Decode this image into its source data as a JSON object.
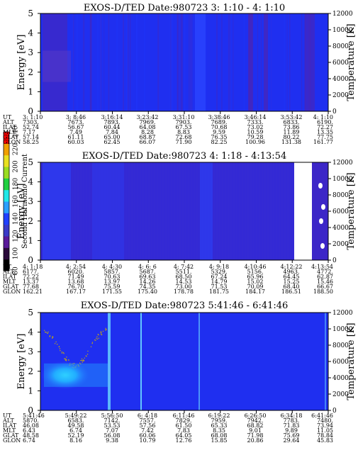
{
  "colors": {
    "bg_blue": "#1f2ff0",
    "band_blue": "#2a45ff",
    "purple": "#4b24b4",
    "cyan_core": "#2ff0ff",
    "speckle": "#d0b000"
  },
  "chart_data": [
    {
      "type": "heatmap",
      "title": "EXOS-D/TED   Date:980723  3: 1:10 - 4: 1:10",
      "ylabel": "Energy [eV]",
      "ylabel_right": "Temperature [K]",
      "ylim": [
        0,
        5
      ],
      "yticks": [
        "0",
        "1",
        "2",
        "3",
        "4",
        "5"
      ],
      "ylim_right": [
        0,
        12000
      ],
      "yticks_right": [
        "0",
        "2000",
        "4000",
        "6000",
        "8000",
        "10000",
        "12000"
      ],
      "x_times": [
        "3: 1:10",
        "3: 8:46",
        "3:16:14",
        "3:23:42",
        "3:31:10",
        "3:38:46",
        "3:46:14",
        "3:53:42",
        "4: 1:10"
      ],
      "rows": [
        {
          "label": "UT",
          "values": [
            "3: 1:10",
            "3: 8:46",
            "3:16:14",
            "3:23:42",
            "3:31:10",
            "3:38:46",
            "3:46:14",
            "3:53:42",
            "4: 1:10"
          ]
        },
        {
          "label": "ALT",
          "values": [
            "7303.",
            "7673.",
            "7893.",
            "7969.",
            "7903.",
            "7689.",
            "7333.",
            "6833.",
            "6190."
          ]
        },
        {
          "label": "ILAT",
          "values": [
            "52.74",
            "56.67",
            "60.44",
            "64.08",
            "67.53",
            "70.68",
            "73.02",
            "73.86",
            "72.27"
          ]
        },
        {
          "label": "MLT",
          "values": [
            "7.17",
            "7.49",
            "7.84",
            "8.28",
            "8.83",
            "9.59",
            "10.59",
            "11.89",
            "13.35"
          ]
        },
        {
          "label": "GLAT",
          "values": [
            "57.14",
            "61.11",
            "65.00",
            "68.87",
            "72.68",
            "76.35",
            "79.28",
            "80.22",
            "77.75"
          ]
        },
        {
          "label": "GLON",
          "values": [
            "58.25",
            "60.03",
            "62.45",
            "66.07",
            "71.90",
            "82.25",
            "100.96",
            "131.38",
            "161.77"
          ]
        }
      ]
    },
    {
      "type": "heatmap",
      "title": "EXOS-D/TED   Date:980723  4: 1:18 - 4:13:54",
      "ylabel": "Energy [eV]",
      "ylabel_right": "Temperature [K]",
      "ylim": [
        0,
        5
      ],
      "yticks": [
        "0",
        "1",
        "2",
        "3",
        "4",
        "5"
      ],
      "ylim_right": [
        0,
        12000
      ],
      "yticks_right": [
        "0",
        "2000",
        "4000",
        "6000",
        "8000",
        "10000",
        "12000"
      ],
      "x_times": [
        "4: 1:18",
        "4: 2:54",
        "4: 4:30",
        "4: 6: 6",
        "4: 7:42",
        "4: 9:18",
        "4:10:46",
        "4:12:22",
        "4:13:54"
      ],
      "rows": [
        {
          "label": "UT",
          "values": [
            "4: 1:18",
            "4: 2:54",
            "4: 4:30",
            "4: 6: 6",
            "4: 7:42",
            "4: 9:18",
            "4:10:46",
            "4:12:22",
            "4:13:54"
          ]
        },
        {
          "label": "ALT",
          "values": [
            "6177.",
            "6020.",
            "5857.",
            "5687.",
            "5511.",
            "5329.",
            "5156.",
            "4963.",
            "4772."
          ]
        },
        {
          "label": "ILAT",
          "values": [
            "72.22",
            "71.49",
            "70.63",
            "69.63",
            "68.50",
            "67.24",
            "65.96",
            "64.45",
            "62.87"
          ]
        },
        {
          "label": "MLT",
          "values": [
            "13.37",
            "13.68",
            "13.97",
            "14.26",
            "14.53",
            "14.79",
            "15.02",
            "15.25",
            "15.46"
          ]
        },
        {
          "label": "GLAT",
          "values": [
            "77.68",
            "76.70",
            "75.59",
            "74.35",
            "73.00",
            "71.53",
            "70.09",
            "68.40",
            "66.67"
          ]
        },
        {
          "label": "GLON",
          "values": [
            "162.21",
            "167.17",
            "171.55",
            "175.40",
            "178.78",
            "181.75",
            "184.17",
            "186.51",
            "188.50"
          ]
        }
      ]
    },
    {
      "type": "heatmap",
      "title": "EXOS-D/TED   Date:980723  5:41:46 - 6:41:46",
      "ylabel": "Energy [eV]",
      "ylabel_right": "Temperature [K]",
      "ylim": [
        0,
        5
      ],
      "yticks": [
        "0",
        "1",
        "2",
        "3",
        "4",
        "5"
      ],
      "ylim_right": [
        0,
        12000
      ],
      "yticks_right": [
        "0",
        "2000",
        "4000",
        "6000",
        "8000",
        "10000",
        "12000"
      ],
      "x_times": [
        "5:41:46",
        "5:49:22",
        "5:56:50",
        "6: 4:18",
        "6:11:46",
        "6:19:22",
        "6:26:50",
        "6:34:18",
        "6:41:46"
      ],
      "rows": [
        {
          "label": "UT",
          "values": [
            "5:41:46",
            "5:49:22",
            "5:56:50",
            "6: 4:18",
            "6:11:46",
            "6:19:22",
            "6:26:50",
            "6:34:18",
            "6:41:46"
          ]
        },
        {
          "label": "ALT",
          "values": [
            "5870.",
            "6583.",
            "7142.",
            "7557.",
            "7829.",
            "7959.",
            "7942.",
            "7783.",
            "7480."
          ]
        },
        {
          "label": "ILAT",
          "values": [
            "46.08",
            "49.58",
            "53.53",
            "57.56",
            "61.50",
            "65.33",
            "68.82",
            "71.83",
            "73.94"
          ]
        },
        {
          "label": "MLT",
          "values": [
            "6.43",
            "6.74",
            "7.07",
            "7.42",
            "7.83",
            "8.35",
            "9.01",
            "9.89",
            "11.05"
          ]
        },
        {
          "label": "GLAT",
          "values": [
            "48.58",
            "52.19",
            "56.08",
            "60.06",
            "64.05",
            "68.08",
            "71.98",
            "75.69",
            "78.84"
          ]
        },
        {
          "label": "GLON",
          "values": [
            "6.74",
            "8.16",
            "9.38",
            "10.79",
            "12.76",
            "15.85",
            "20.86",
            "29.64",
            "45.83"
          ]
        }
      ]
    }
  ],
  "colorbar": {
    "label": "Second Harmonic Current",
    "range": [
      80,
      240
    ],
    "ticks": [
      "80",
      "100",
      "120",
      "140",
      "160",
      "180",
      "200",
      "220",
      "240"
    ],
    "colors": [
      "#000000",
      "#2a0a3a",
      "#5a1a9a",
      "#3a3ac8",
      "#2040ff",
      "#2aa0ff",
      "#20e8e8",
      "#20d040",
      "#9adc20",
      "#e8e020",
      "#f0a000",
      "#ff0000"
    ]
  }
}
